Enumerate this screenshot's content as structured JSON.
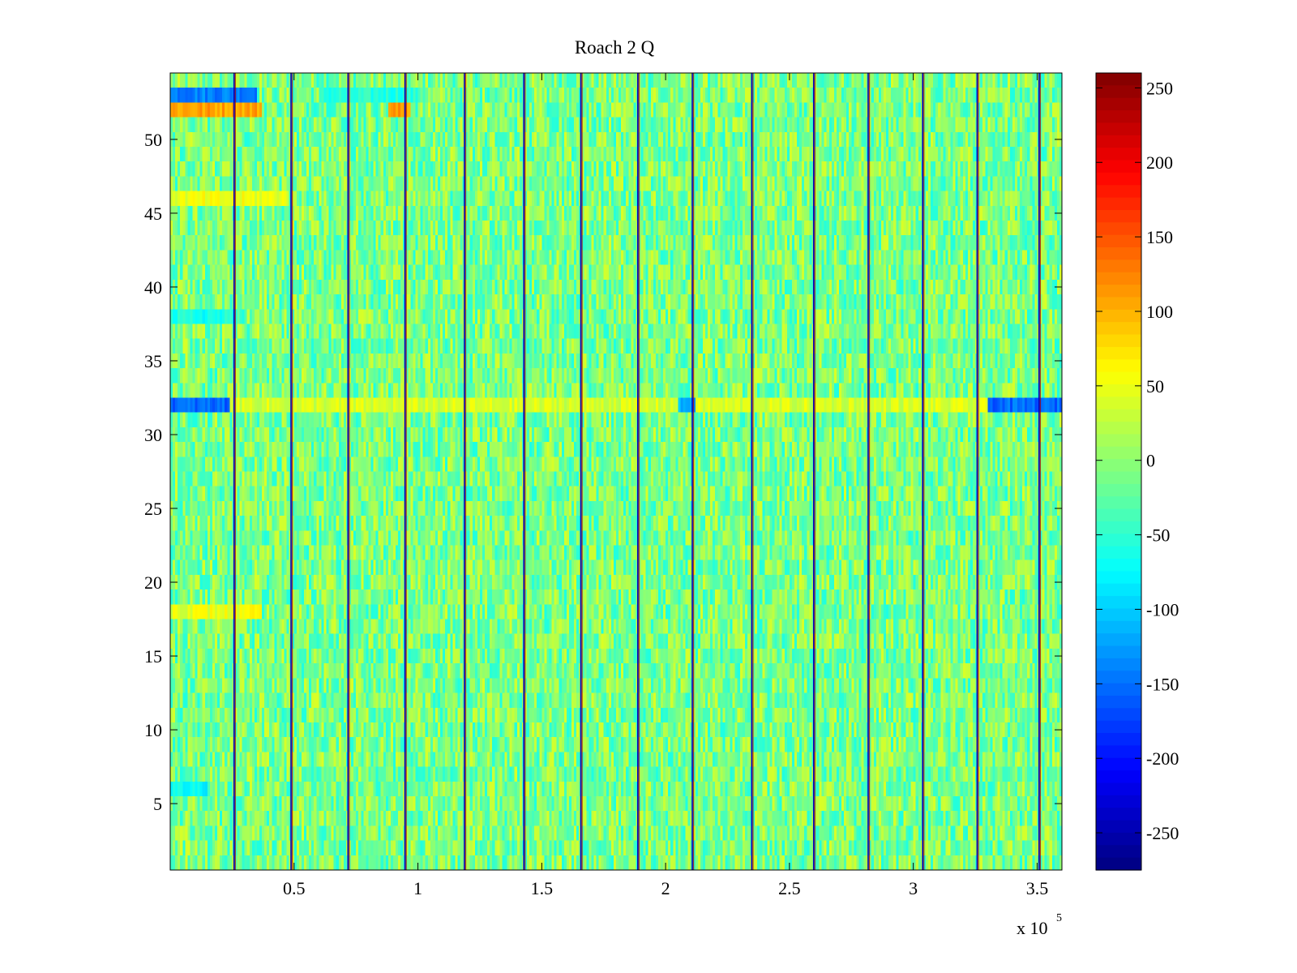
{
  "chart_data": {
    "type": "heatmap",
    "title": "Roach 2 Q",
    "xlabel": "",
    "ylabel": "",
    "x_multiplier_label": {
      "base": "x 10",
      "exponent": "5"
    },
    "xlim": [
      0,
      3.6
    ],
    "ylim": [
      0.5,
      54.5
    ],
    "x_ticks": [
      0.5,
      1,
      1.5,
      2,
      2.5,
      3,
      3.5
    ],
    "x_tick_labels": [
      "0.5",
      "1",
      "1.5",
      "2",
      "2.5",
      "3",
      "3.5"
    ],
    "y_ticks": [
      5,
      10,
      15,
      20,
      25,
      30,
      35,
      40,
      45,
      50
    ],
    "y_tick_labels": [
      "5",
      "10",
      "15",
      "20",
      "25",
      "30",
      "35",
      "40",
      "45",
      "50"
    ],
    "rows": 54,
    "columns_approx": 360,
    "colormap": "jet",
    "clim": [
      -275,
      260
    ],
    "colorbar_ticks": [
      250,
      200,
      150,
      100,
      50,
      0,
      -50,
      -100,
      -150,
      -200,
      -250
    ],
    "colorbar_tick_labels": [
      "250",
      "200",
      "150",
      "100",
      "50",
      "0",
      "-50",
      "-100",
      "-150",
      "-200",
      "-250"
    ],
    "background_value_range": [
      -60,
      40
    ],
    "vertical_stripes": [
      {
        "x": 0.26,
        "values": [
          -240,
          240
        ]
      },
      {
        "x": 0.49,
        "values": [
          -240,
          240
        ]
      },
      {
        "x": 0.72,
        "values": [
          -240,
          240
        ]
      },
      {
        "x": 0.95,
        "values": [
          -240,
          240
        ]
      },
      {
        "x": 1.19,
        "values": [
          -240,
          240
        ]
      },
      {
        "x": 1.43,
        "values": [
          -240,
          240
        ]
      },
      {
        "x": 1.66,
        "values": [
          -240,
          240
        ]
      },
      {
        "x": 1.89,
        "values": [
          -240,
          240
        ]
      },
      {
        "x": 2.11,
        "values": [
          -240,
          240
        ]
      },
      {
        "x": 2.35,
        "values": [
          -240,
          240
        ]
      },
      {
        "x": 2.6,
        "values": [
          -240,
          240
        ]
      },
      {
        "x": 2.82,
        "values": [
          -240,
          240
        ]
      },
      {
        "x": 3.04,
        "values": [
          -240,
          240
        ]
      },
      {
        "x": 3.26,
        "values": [
          -240,
          240
        ]
      },
      {
        "x": 3.51,
        "values": [
          -240,
          240
        ]
      }
    ],
    "notable_rows": [
      {
        "row": 32,
        "pattern": "strong negative (about -200) near x 0-0.25 and 3.3-3.6, positive (about 60-100) elsewhere"
      },
      {
        "row": 53,
        "pattern": "strong negative (about -180) for x 0-0.35, cyan segments near x 0.6-1.0"
      },
      {
        "row": 52,
        "pattern": "strong positive (about 150) for x 0-0.37 and 0.88-0.97"
      },
      {
        "row": 46,
        "pattern": "positive (about 70) for x 0-0.48"
      },
      {
        "row": 38,
        "pattern": "negative (about -80) for x 0-0.27"
      },
      {
        "row": 18,
        "pattern": "positive (about 70) for x 0-0.37"
      },
      {
        "row": 6,
        "pattern": "negative (about -90) for x 0-0.15"
      }
    ]
  }
}
